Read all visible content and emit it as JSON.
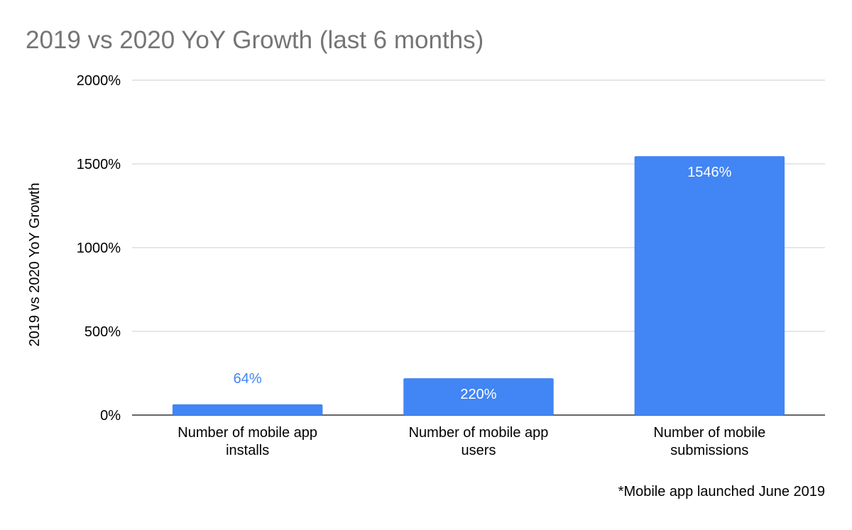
{
  "chart_data": {
    "type": "bar",
    "title": "2019 vs 2020 YoY Growth (last 6 months)",
    "ylabel": "2019 vs 2020 YoY Growth",
    "xlabel": "",
    "categories": [
      [
        "Number of mobile app",
        "installs"
      ],
      [
        "Number of mobile app",
        "users"
      ],
      [
        "Number of mobile",
        "submissions"
      ]
    ],
    "values": [
      64,
      220,
      1546
    ],
    "data_labels": [
      "64%",
      "220%",
      "1546%"
    ],
    "ylim": [
      0,
      2000
    ],
    "yticks": [
      0,
      500,
      1000,
      1500,
      2000
    ],
    "ytick_labels": [
      "0%",
      "500%",
      "1000%",
      "1500%",
      "2000%"
    ],
    "grid": true,
    "legend": "none",
    "annotation": "*Mobile app launched June 2019",
    "colors": {
      "bar": "#4285f4",
      "label_inside": "#ffffff",
      "label_outside": "#4285f4",
      "title": "#757575",
      "grid": "#cccccc",
      "axis": "#333333",
      "text": "#000000"
    }
  }
}
